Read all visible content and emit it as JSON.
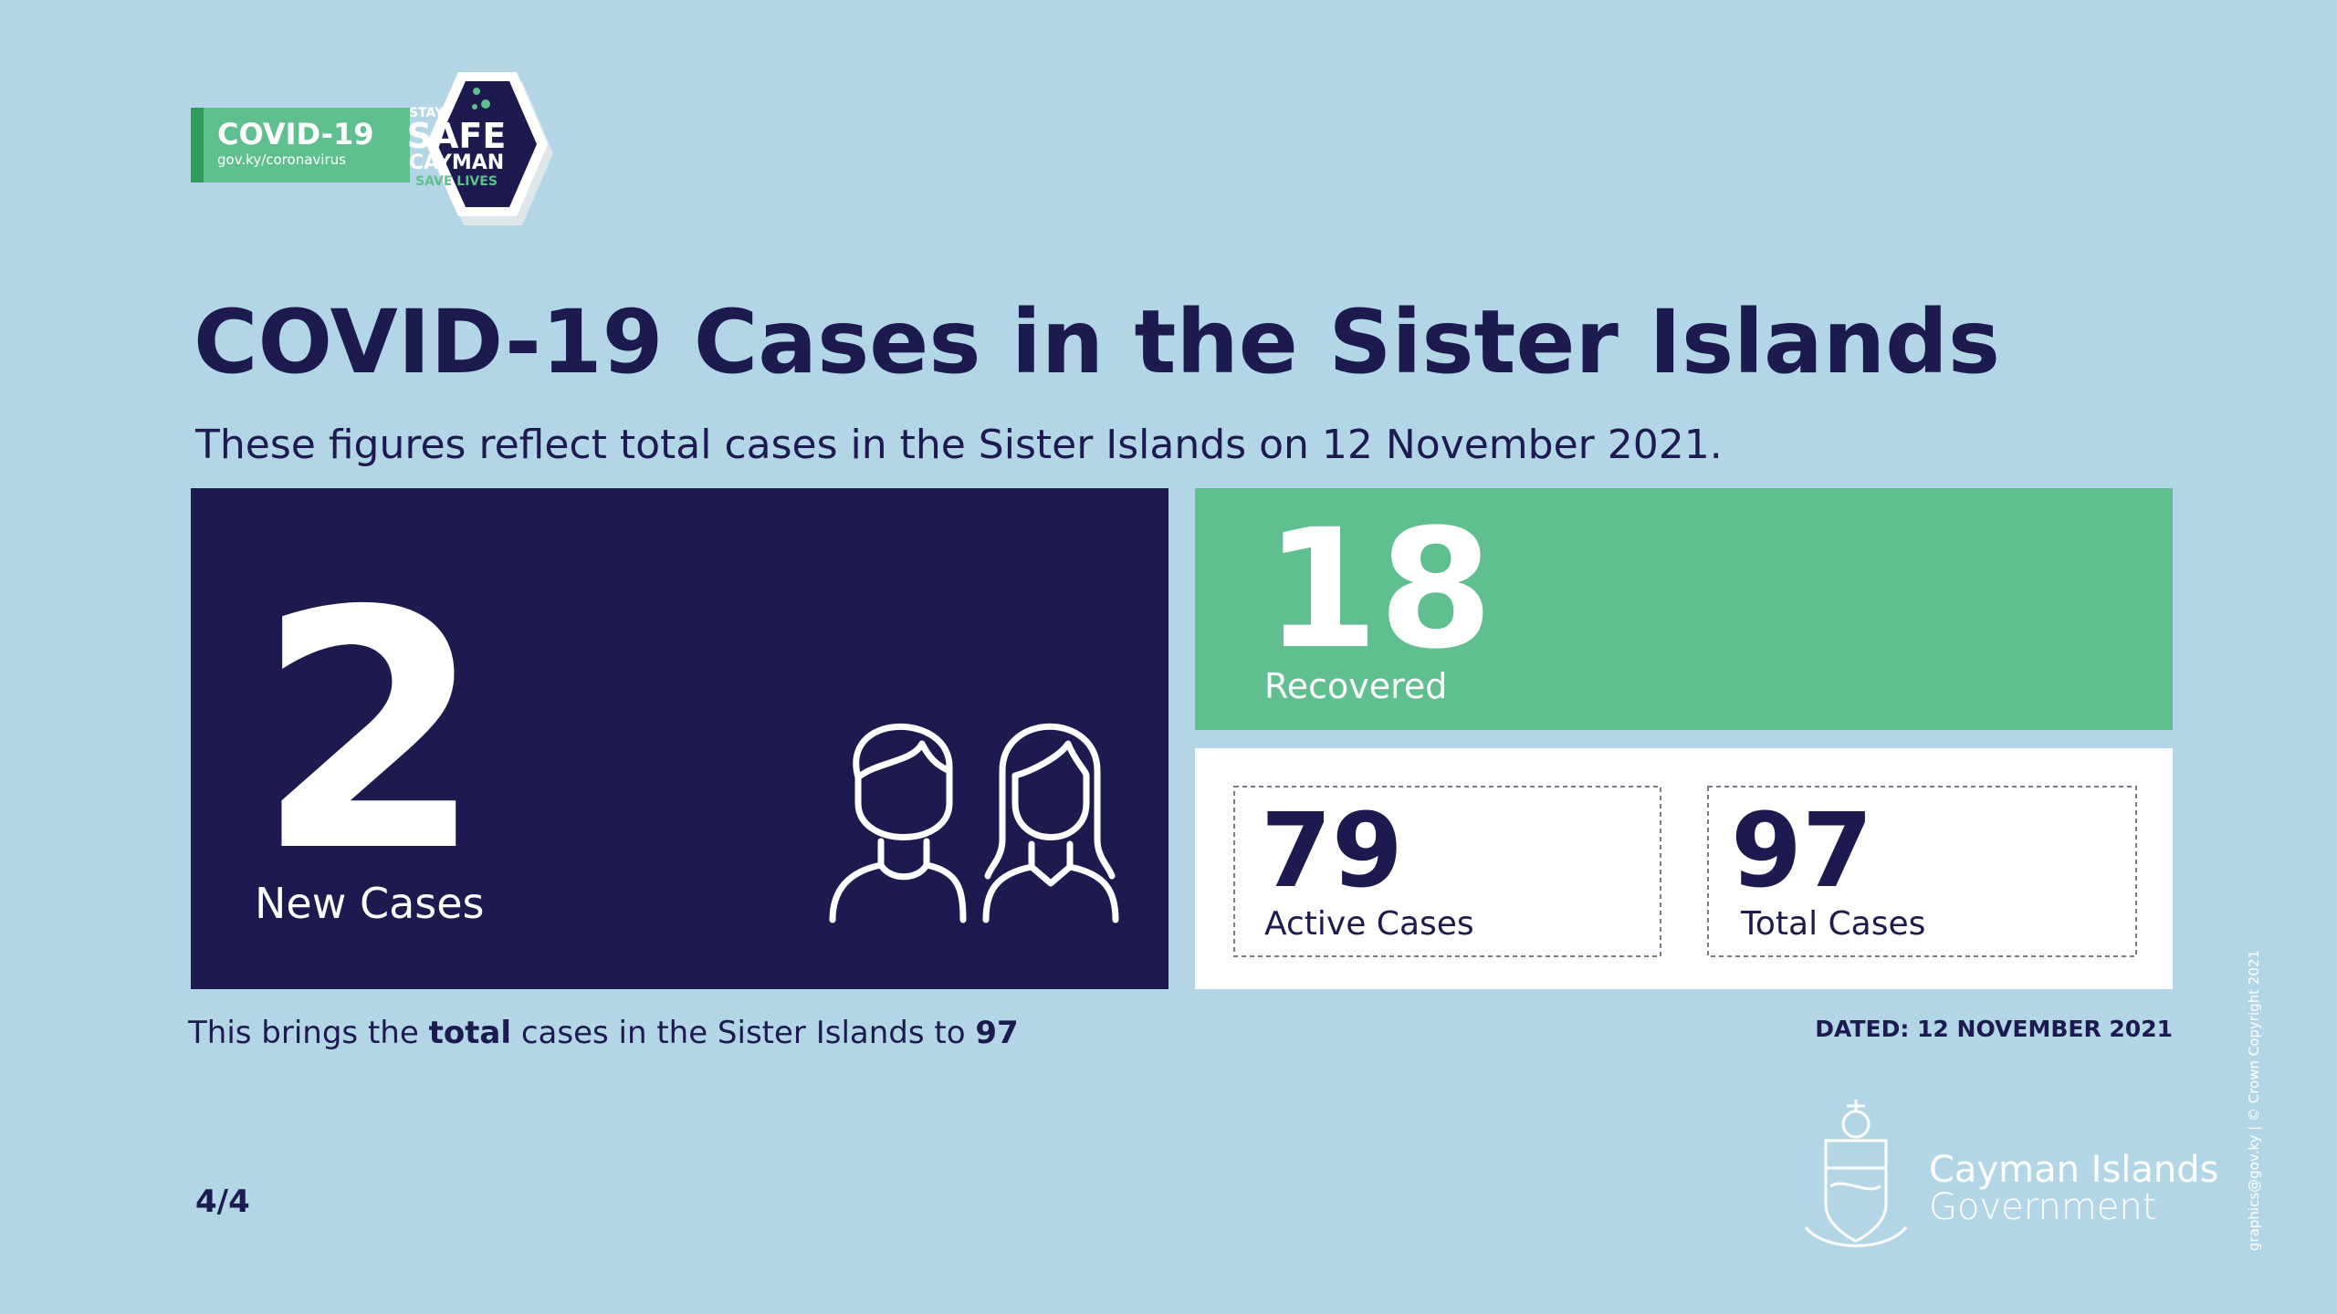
{
  "logo": {
    "badge": "COVID-19",
    "url": "gov.ky/coronavirus",
    "stay": "STAY",
    "safe": "SAFE",
    "cayman": "CAYMAN",
    "save_lives": "SAVE LIVES"
  },
  "header": {
    "title": "COVID-19 Cases in the Sister Islands",
    "subtitle": "These figures reflect total cases in the Sister Islands on 12 November 2021."
  },
  "stats": {
    "new_cases": {
      "value": 2,
      "label": "New Cases"
    },
    "recovered": {
      "value": 18,
      "label": "Recovered"
    },
    "active": {
      "value": 79,
      "label": "Active Cases"
    },
    "total": {
      "value": 97,
      "label": "Total Cases"
    }
  },
  "footer": {
    "summary": {
      "before": "This brings the",
      "bold": "total",
      "after": "cases in the Sister Islands to",
      "total": 97
    },
    "dated": "DATED: 12 NOVEMBER 2021",
    "page": "4/4"
  },
  "government": {
    "line1": "Cayman Islands",
    "line2": "Government"
  },
  "copyright": "graphics@gov.ky | © Crown Copyright 2021"
}
